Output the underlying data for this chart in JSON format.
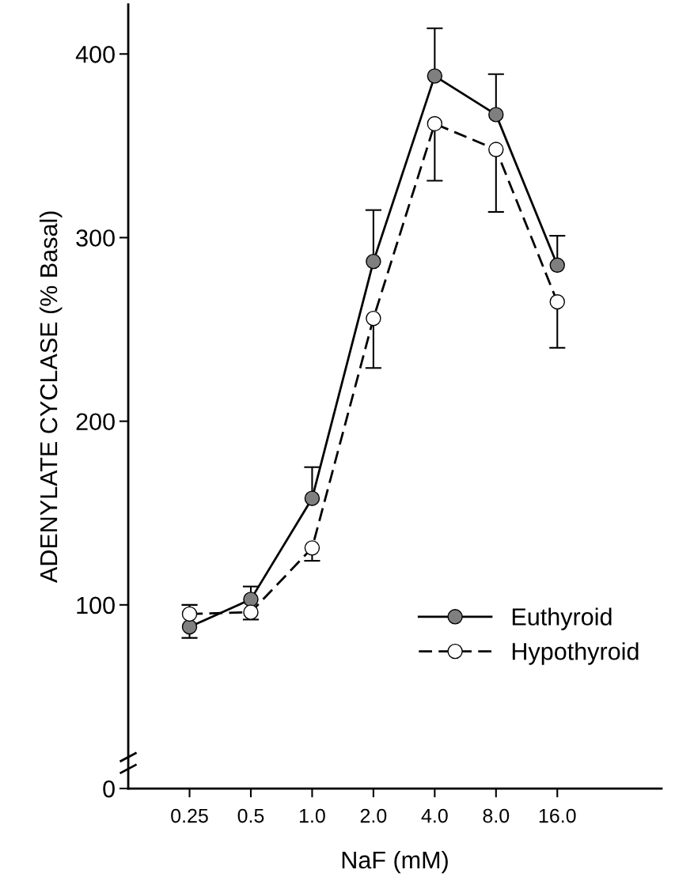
{
  "chart_data": {
    "type": "line",
    "xlabel": "NaF (mM)",
    "ylabel": "ADENYLATE CYCLASE (% Basal)",
    "categories": [
      "0.25",
      "0.5",
      "1.0",
      "2.0",
      "4.0",
      "8.0",
      "16.0"
    ],
    "ylim": [
      0,
      427
    ],
    "yticks": [
      0,
      100,
      200,
      300,
      400
    ],
    "series": [
      {
        "name": "Euthyroid",
        "color": "#7f7f7f",
        "line_style": "solid",
        "values": [
          88,
          103,
          158,
          287,
          388,
          367,
          285
        ],
        "errors": [
          [
            82,
            88
          ],
          [
            103,
            110
          ],
          [
            158,
            175
          ],
          [
            287,
            315
          ],
          [
            388,
            414
          ],
          [
            367,
            389
          ],
          [
            285,
            301
          ]
        ]
      },
      {
        "name": "Hypothyroid",
        "color": "#ffffff",
        "line_style": "dashed",
        "values": [
          95,
          96,
          131,
          256,
          362,
          348,
          265
        ],
        "errors": [
          [
            95,
            100
          ],
          [
            92,
            96
          ],
          [
            124,
            131
          ],
          [
            229,
            256
          ],
          [
            331,
            362
          ],
          [
            314,
            348
          ],
          [
            240,
            265
          ]
        ]
      }
    ],
    "marker": "circle",
    "legend": "bottom right",
    "grid": false
  }
}
